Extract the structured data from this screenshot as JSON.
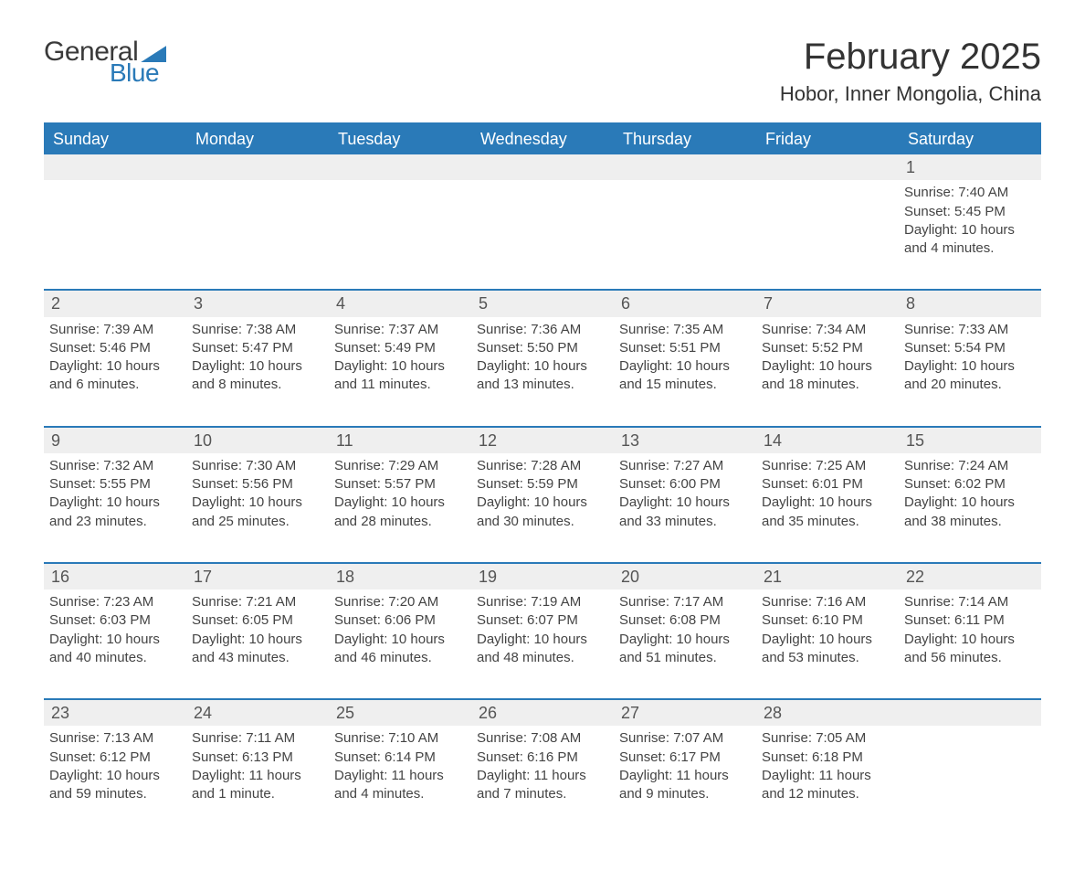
{
  "logo": {
    "word1": "General",
    "word2": "Blue"
  },
  "header": {
    "month": "February 2025",
    "location": "Hobor, Inner Mongolia, China"
  },
  "colors": {
    "brand": "#2a7ab8",
    "text": "#444444",
    "daybar": "#efefef",
    "bg": "#ffffff"
  },
  "weekdays": [
    "Sunday",
    "Monday",
    "Tuesday",
    "Wednesday",
    "Thursday",
    "Friday",
    "Saturday"
  ],
  "labels": {
    "sunrise": "Sunrise",
    "sunset": "Sunset",
    "daylight": "Daylight"
  },
  "weeks": [
    [
      null,
      null,
      null,
      null,
      null,
      null,
      {
        "d": "1",
        "sunrise": "7:40 AM",
        "sunset": "5:45 PM",
        "daylight": "10 hours and 4 minutes."
      }
    ],
    [
      {
        "d": "2",
        "sunrise": "7:39 AM",
        "sunset": "5:46 PM",
        "daylight": "10 hours and 6 minutes."
      },
      {
        "d": "3",
        "sunrise": "7:38 AM",
        "sunset": "5:47 PM",
        "daylight": "10 hours and 8 minutes."
      },
      {
        "d": "4",
        "sunrise": "7:37 AM",
        "sunset": "5:49 PM",
        "daylight": "10 hours and 11 minutes."
      },
      {
        "d": "5",
        "sunrise": "7:36 AM",
        "sunset": "5:50 PM",
        "daylight": "10 hours and 13 minutes."
      },
      {
        "d": "6",
        "sunrise": "7:35 AM",
        "sunset": "5:51 PM",
        "daylight": "10 hours and 15 minutes."
      },
      {
        "d": "7",
        "sunrise": "7:34 AM",
        "sunset": "5:52 PM",
        "daylight": "10 hours and 18 minutes."
      },
      {
        "d": "8",
        "sunrise": "7:33 AM",
        "sunset": "5:54 PM",
        "daylight": "10 hours and 20 minutes."
      }
    ],
    [
      {
        "d": "9",
        "sunrise": "7:32 AM",
        "sunset": "5:55 PM",
        "daylight": "10 hours and 23 minutes."
      },
      {
        "d": "10",
        "sunrise": "7:30 AM",
        "sunset": "5:56 PM",
        "daylight": "10 hours and 25 minutes."
      },
      {
        "d": "11",
        "sunrise": "7:29 AM",
        "sunset": "5:57 PM",
        "daylight": "10 hours and 28 minutes."
      },
      {
        "d": "12",
        "sunrise": "7:28 AM",
        "sunset": "5:59 PM",
        "daylight": "10 hours and 30 minutes."
      },
      {
        "d": "13",
        "sunrise": "7:27 AM",
        "sunset": "6:00 PM",
        "daylight": "10 hours and 33 minutes."
      },
      {
        "d": "14",
        "sunrise": "7:25 AM",
        "sunset": "6:01 PM",
        "daylight": "10 hours and 35 minutes."
      },
      {
        "d": "15",
        "sunrise": "7:24 AM",
        "sunset": "6:02 PM",
        "daylight": "10 hours and 38 minutes."
      }
    ],
    [
      {
        "d": "16",
        "sunrise": "7:23 AM",
        "sunset": "6:03 PM",
        "daylight": "10 hours and 40 minutes."
      },
      {
        "d": "17",
        "sunrise": "7:21 AM",
        "sunset": "6:05 PM",
        "daylight": "10 hours and 43 minutes."
      },
      {
        "d": "18",
        "sunrise": "7:20 AM",
        "sunset": "6:06 PM",
        "daylight": "10 hours and 46 minutes."
      },
      {
        "d": "19",
        "sunrise": "7:19 AM",
        "sunset": "6:07 PM",
        "daylight": "10 hours and 48 minutes."
      },
      {
        "d": "20",
        "sunrise": "7:17 AM",
        "sunset": "6:08 PM",
        "daylight": "10 hours and 51 minutes."
      },
      {
        "d": "21",
        "sunrise": "7:16 AM",
        "sunset": "6:10 PM",
        "daylight": "10 hours and 53 minutes."
      },
      {
        "d": "22",
        "sunrise": "7:14 AM",
        "sunset": "6:11 PM",
        "daylight": "10 hours and 56 minutes."
      }
    ],
    [
      {
        "d": "23",
        "sunrise": "7:13 AM",
        "sunset": "6:12 PM",
        "daylight": "10 hours and 59 minutes."
      },
      {
        "d": "24",
        "sunrise": "7:11 AM",
        "sunset": "6:13 PM",
        "daylight": "11 hours and 1 minute."
      },
      {
        "d": "25",
        "sunrise": "7:10 AM",
        "sunset": "6:14 PM",
        "daylight": "11 hours and 4 minutes."
      },
      {
        "d": "26",
        "sunrise": "7:08 AM",
        "sunset": "6:16 PM",
        "daylight": "11 hours and 7 minutes."
      },
      {
        "d": "27",
        "sunrise": "7:07 AM",
        "sunset": "6:17 PM",
        "daylight": "11 hours and 9 minutes."
      },
      {
        "d": "28",
        "sunrise": "7:05 AM",
        "sunset": "6:18 PM",
        "daylight": "11 hours and 12 minutes."
      },
      null
    ]
  ]
}
